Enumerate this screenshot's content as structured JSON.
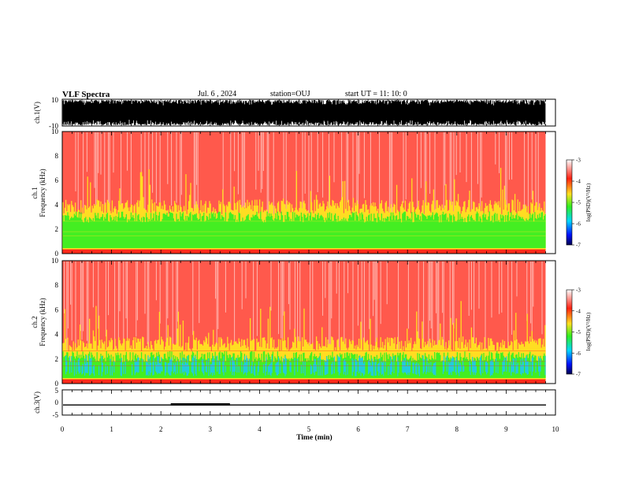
{
  "header": {
    "title": "VLF Spectra",
    "date": "Jul. 6 , 2024",
    "station": "station=OUJ",
    "start_ut": "start UT =  11: 10: 0"
  },
  "chart_data": [
    {
      "type": "line",
      "name": "ch1-waveform",
      "ylabel": "ch.1(V)",
      "ylim": [
        -10,
        10
      ],
      "ytick_labels": [
        "10",
        "-10"
      ],
      "x_range_min": [
        0,
        9.8
      ],
      "description": "dense broadband waveform"
    },
    {
      "type": "heatmap",
      "name": "ch1-spectrogram",
      "ylabel": "ch.1\nFrequency (kHz)",
      "ylim": [
        0,
        10
      ],
      "ytick_labels": [
        "0",
        "2",
        "4",
        "6",
        "8",
        "10"
      ],
      "x_range_min": [
        0,
        9.8
      ],
      "colorbar": {
        "label": "log(PSD)(V²/Hz)",
        "ticks": [
          "-3",
          "-4",
          "-5",
          "-6",
          "-7"
        ],
        "range": [
          -7,
          -3
        ]
      }
    },
    {
      "type": "heatmap",
      "name": "ch2-spectrogram",
      "ylabel": "ch.2\nFrequency (kHz)",
      "ylim": [
        0,
        10
      ],
      "ytick_labels": [
        "0",
        "2",
        "4",
        "6",
        "8",
        "10"
      ],
      "x_range_min": [
        0,
        9.8
      ],
      "colorbar": {
        "label": "log(PSD)(V²/Hz)",
        "ticks": [
          "-3",
          "-4",
          "-5",
          "-6",
          "-7"
        ],
        "range": [
          -7,
          -3
        ]
      }
    },
    {
      "type": "line",
      "name": "ch3-signal",
      "ylabel": "ch.3(V)",
      "ylim": [
        -5,
        5
      ],
      "ytick_labels": [
        "5",
        "0",
        "-5"
      ],
      "baseline_value": -1.0,
      "pulse": {
        "start_min": 2.2,
        "end_min": 3.4,
        "value": -0.8
      }
    }
  ],
  "xaxis": {
    "label": "Time (min)",
    "ticks": [
      "0",
      "1",
      "2",
      "3",
      "4",
      "5",
      "6",
      "7",
      "8",
      "9",
      "10"
    ],
    "range": [
      0,
      10
    ]
  },
  "colors": {
    "red": "#ff2a1a",
    "yellow": "#ffdd22",
    "green": "#44ee22",
    "cyan": "#22ccdd",
    "blue": "#1030ff"
  }
}
